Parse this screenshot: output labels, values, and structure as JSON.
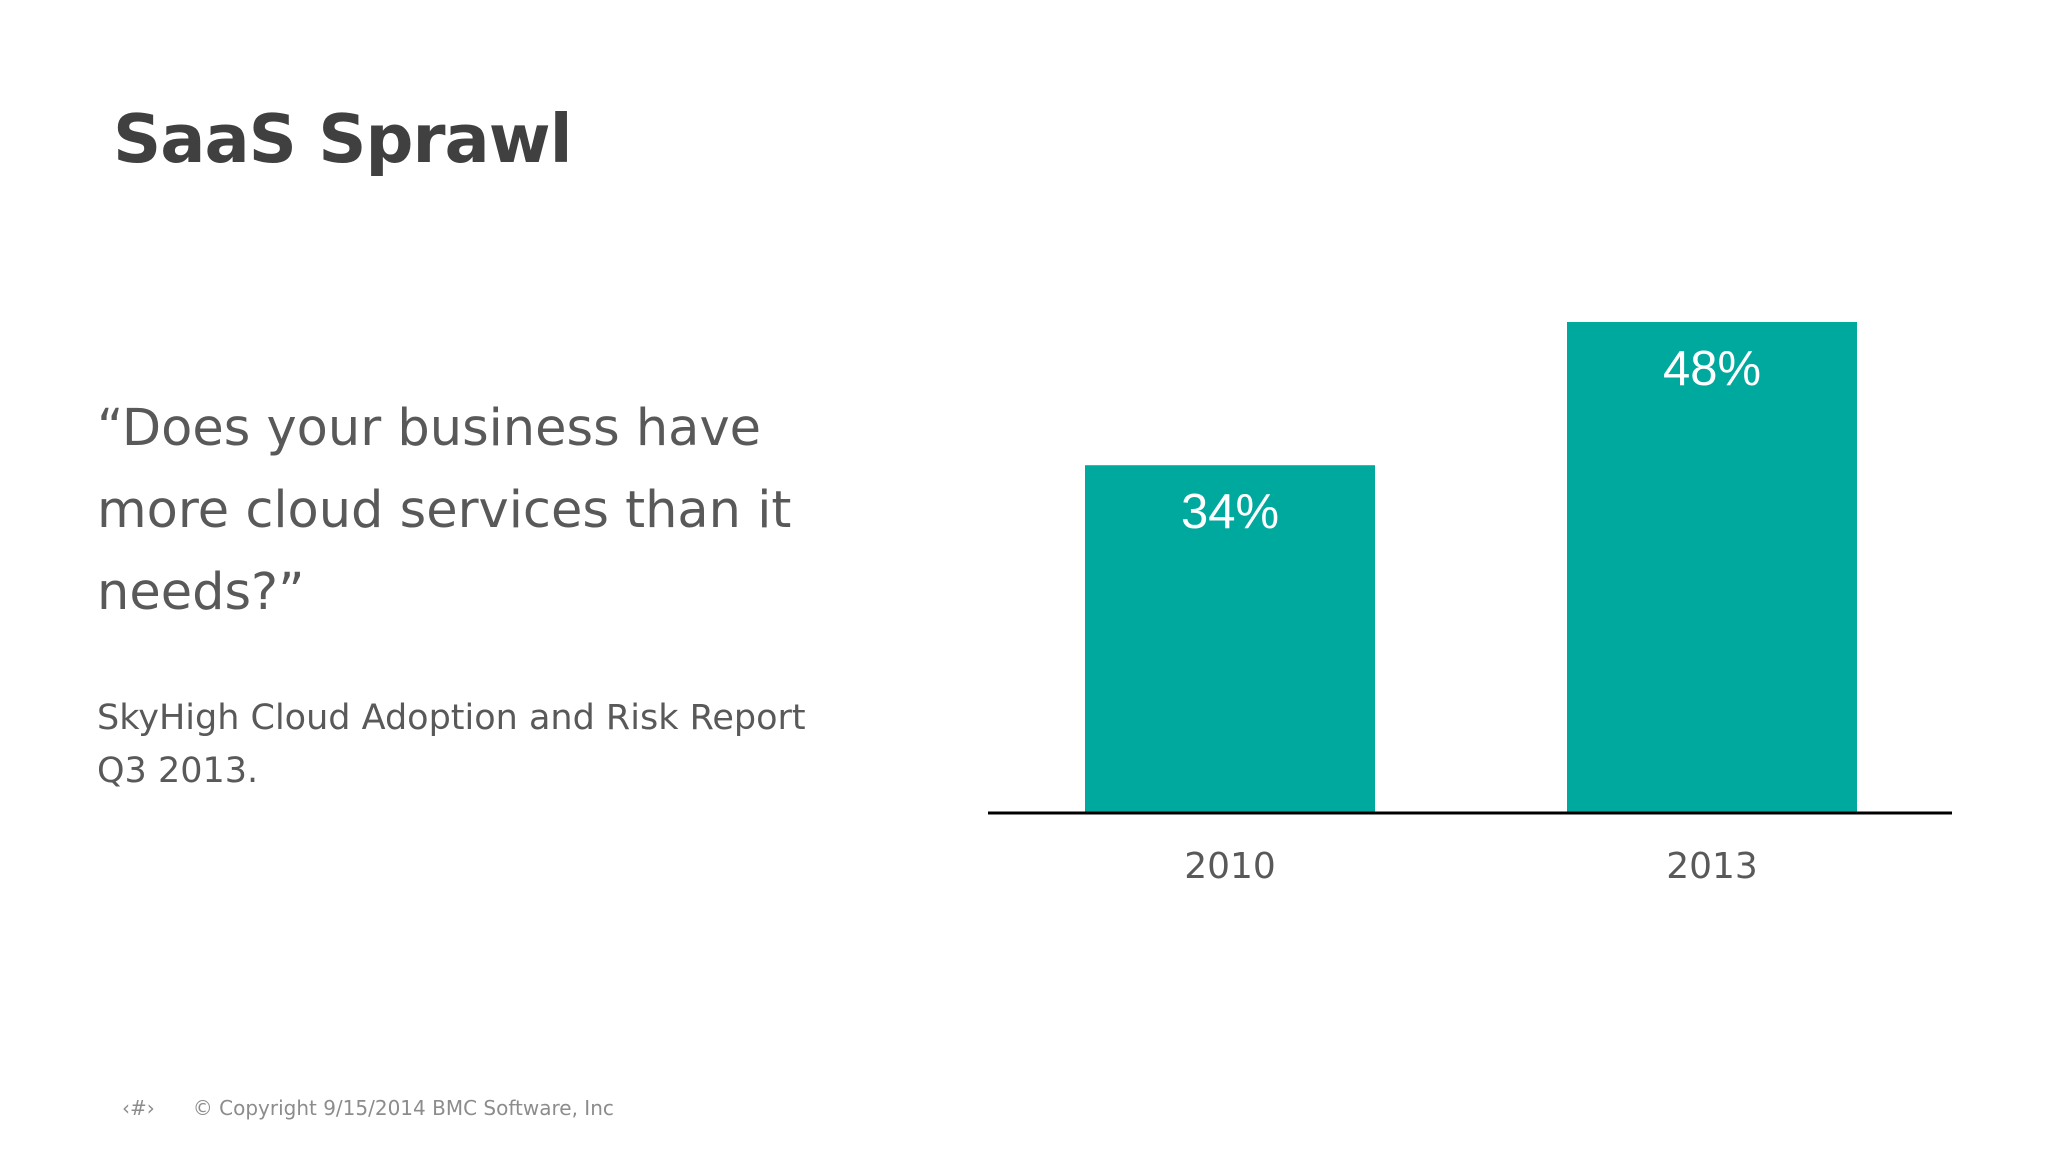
{
  "slide": {
    "title": "SaaS Sprawl",
    "question": "“Does your business have more cloud services than it needs?”",
    "source": "SkyHigh Cloud Adoption and Risk Report Q3 2013.",
    "footer": {
      "page_number": "‹#›",
      "copyright": "© Copyright 9/15/2014 BMC Software, Inc"
    }
  },
  "colors": {
    "bar": "#00a99d",
    "axis": "#000000",
    "bar_label": "#ffffff",
    "tick_label": "#595959"
  },
  "chart_data": {
    "type": "bar",
    "categories": [
      "2010",
      "2013"
    ],
    "values": [
      34,
      48
    ],
    "data_labels": [
      "34%",
      "48%"
    ],
    "title": "",
    "xlabel": "",
    "ylabel": "",
    "ylim": [
      0,
      48
    ],
    "grid": false,
    "legend": "none"
  }
}
